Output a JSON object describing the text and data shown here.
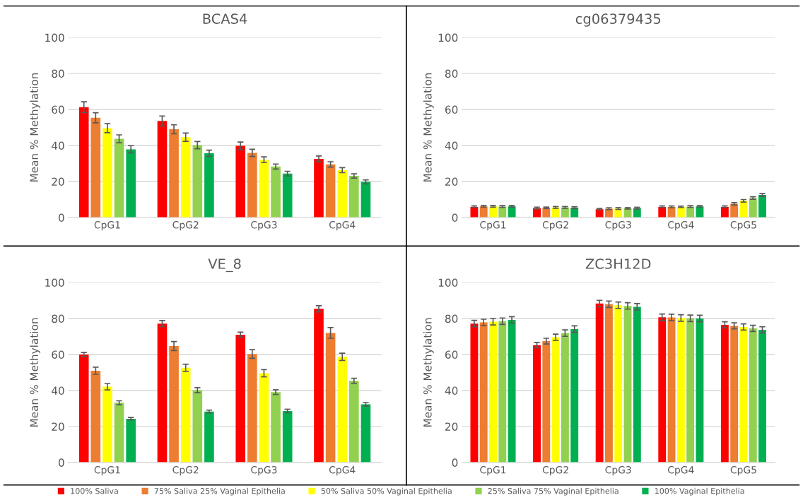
{
  "chart_data": [
    {
      "type": "bar",
      "title": "BCAS4",
      "ylabel": "Mean % Methylation",
      "categories": [
        "CpG1",
        "CpG2",
        "CpG3",
        "CpG4"
      ],
      "ylim": [
        0,
        100
      ],
      "yticks": [
        0,
        20,
        40,
        60,
        80,
        100
      ],
      "grid": "y",
      "legend": "bottom",
      "series": [
        {
          "name": "100% Saliva",
          "color": "#ff0000",
          "values": [
            61.3,
            53.6,
            39.8,
            32.6
          ],
          "errors": [
            3,
            2.8,
            2.1,
            1.6
          ]
        },
        {
          "name": "75% Saliva 25% Vaginal Epithelia",
          "color": "#ed7d31",
          "values": [
            55.4,
            49,
            35.9,
            29.5
          ],
          "errors": [
            2.8,
            2.5,
            2,
            1.5
          ]
        },
        {
          "name": "50% Saliva 50% Vaginal Epithelia",
          "color": "#ffff00",
          "values": [
            49.6,
            44.6,
            32.1,
            26.3
          ],
          "errors": [
            2.5,
            2.3,
            1.6,
            1.4
          ]
        },
        {
          "name": "25% Saliva 75% Vaginal Epithelia",
          "color": "#92d050",
          "values": [
            43.7,
            40.2,
            28.3,
            23.1
          ],
          "errors": [
            2.2,
            2,
            1.4,
            1.2
          ]
        },
        {
          "name": "100% Vaginal Epithelia",
          "color": "#00b050",
          "values": [
            37.9,
            35.7,
            24.4,
            19.8
          ],
          "errors": [
            2,
            1.7,
            1.3,
            1.1
          ]
        }
      ]
    },
    {
      "type": "bar",
      "title": "cg06379435",
      "ylabel": "Mean % Methylation",
      "categories": [
        "CpG1",
        "CpG2",
        "CpG3",
        "CpG4",
        "CpG5"
      ],
      "ylim": [
        0,
        100
      ],
      "yticks": [
        0,
        20,
        40,
        60,
        80,
        100
      ],
      "grid": "y",
      "legend": "bottom",
      "series": [
        {
          "name": "100% Saliva",
          "color": "#ff0000",
          "values": [
            5.9,
            5.2,
            4.6,
            5.9,
            5.9
          ],
          "errors": [
            0.5,
            0.5,
            0.4,
            0.5,
            0.5
          ]
        },
        {
          "name": "75% Saliva 25% Vaginal Epithelia",
          "color": "#ed7d31",
          "values": [
            6.2,
            5.4,
            4.9,
            5.9,
            7.6
          ],
          "errors": [
            0.5,
            0.4,
            0.5,
            0.5,
            0.7
          ]
        },
        {
          "name": "50% Saliva 50% Vaginal Epithelia",
          "color": "#ffff00",
          "values": [
            6.2,
            5.6,
            5.0,
            5.9,
            9.3
          ],
          "errors": [
            0.5,
            0.5,
            0.5,
            0.4,
            0.7
          ]
        },
        {
          "name": "25% Saliva 75% Vaginal Epithelia",
          "color": "#92d050",
          "values": [
            6.1,
            5.6,
            5.1,
            6.1,
            10.8
          ],
          "errors": [
            0.5,
            0.5,
            0.4,
            0.5,
            0.7
          ]
        },
        {
          "name": "100% Vaginal Epithelia",
          "color": "#00b050",
          "values": [
            6.2,
            5.5,
            5.2,
            6.2,
            12.5
          ],
          "errors": [
            0.5,
            0.5,
            0.5,
            0.5,
            0.8
          ]
        }
      ]
    },
    {
      "type": "bar",
      "title": "VE_8",
      "ylabel": "Mean % Methylation",
      "categories": [
        "CpG1",
        "CpG2",
        "CpG3",
        "CpG4"
      ],
      "ylim": [
        0,
        100
      ],
      "yticks": [
        0,
        20,
        40,
        60,
        80,
        100
      ],
      "grid": "y",
      "legend": "bottom",
      "series": [
        {
          "name": "100% Saliva",
          "color": "#ff0000",
          "values": [
            60,
            77.2,
            71,
            85.4
          ],
          "errors": [
            1.1,
            1.7,
            1.4,
            1.7
          ]
        },
        {
          "name": "75% Saliva 25% Vaginal Epithelia",
          "color": "#ed7d31",
          "values": [
            51,
            64.7,
            60.3,
            72
          ],
          "errors": [
            2,
            2.5,
            2.4,
            3
          ]
        },
        {
          "name": "50% Saliva 50% Vaginal Epithelia",
          "color": "#ffff00",
          "values": [
            42.1,
            52.6,
            49.6,
            58.7
          ],
          "errors": [
            1.8,
            2,
            2,
            2
          ]
        },
        {
          "name": "25% Saliva 75% Vaginal Epithelia",
          "color": "#92d050",
          "values": [
            33.2,
            40.2,
            39.1,
            45.4
          ],
          "errors": [
            1.1,
            1.4,
            1.3,
            1.4
          ]
        },
        {
          "name": "100% Vaginal Epithelia",
          "color": "#00b050",
          "values": [
            24.3,
            28.3,
            28.6,
            32.3
          ],
          "errors": [
            0.7,
            0.8,
            1,
            1
          ]
        }
      ]
    },
    {
      "type": "bar",
      "title": "ZC3H12D",
      "ylabel": "Mean % Methylation",
      "categories": [
        "CpG1",
        "CpG2",
        "CpG3",
        "CpG4",
        "CpG5"
      ],
      "ylim": [
        0,
        100
      ],
      "yticks": [
        0,
        20,
        40,
        60,
        80,
        100
      ],
      "grid": "y",
      "legend": "bottom",
      "series": [
        {
          "name": "100% Saliva",
          "color": "#ff0000",
          "values": [
            77.2,
            65.2,
            88.3,
            80.7,
            76.5
          ],
          "errors": [
            1.8,
            1.5,
            1.8,
            1.8,
            1.7
          ]
        },
        {
          "name": "75% Saliva 25% Vaginal Epithelia",
          "color": "#ed7d31",
          "values": [
            77.8,
            67.4,
            87.9,
            80.6,
            75.9
          ],
          "errors": [
            1.8,
            1.6,
            1.8,
            1.8,
            1.7
          ]
        },
        {
          "name": "50% Saliva 50% Vaginal Epithelia",
          "color": "#ffff00",
          "values": [
            78.2,
            69.6,
            87.4,
            80.3,
            75.3
          ],
          "errors": [
            1.8,
            1.7,
            1.8,
            1.8,
            1.7
          ]
        },
        {
          "name": "25% Saliva 75% Vaginal Epithelia",
          "color": "#92d050",
          "values": [
            78.5,
            71.9,
            87,
            80.1,
            74.5
          ],
          "errors": [
            1.8,
            1.8,
            1.8,
            1.8,
            1.7
          ]
        },
        {
          "name": "100% Vaginal Epithelia",
          "color": "#00b050",
          "values": [
            79.2,
            74.1,
            86.5,
            80,
            73.7
          ],
          "errors": [
            1.8,
            1.8,
            1.8,
            1.8,
            1.7
          ]
        }
      ]
    }
  ]
}
